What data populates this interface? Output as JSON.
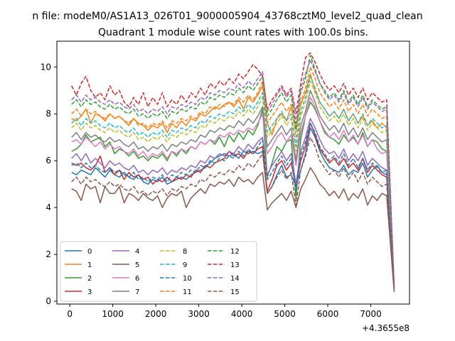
{
  "figure": {
    "suptitle": "n file: modeM0/AS1A13_026T01_9000005904_43768cztM0_level2_quad_clean"
  },
  "chart_data": {
    "type": "line",
    "title": "Quadrant 1 module wise count rates with 100.0s bins.",
    "xlabel": "",
    "ylabel": "",
    "x_offset_label": "+4.3655e8",
    "xlim": [
      -300,
      7900
    ],
    "ylim": [
      -0.12,
      11.1
    ],
    "xticks": [
      0,
      1000,
      2000,
      3000,
      4000,
      5000,
      6000,
      7000
    ],
    "xtick_labels": [
      "0",
      "1000",
      "2000",
      "3000",
      "4000",
      "5000",
      "6000",
      "7000"
    ],
    "yticks": [
      0,
      2,
      4,
      6,
      8,
      10
    ],
    "ytick_labels": [
      "0",
      "2",
      "4",
      "6",
      "8",
      "10"
    ],
    "grid": false,
    "legend_position": "lower-left",
    "legend_columns": 4,
    "series": [
      {
        "name": "0",
        "color": "#1f77b4",
        "dash": "solid",
        "values": [
          5.5,
          5.4,
          5.6,
          5.5,
          5.4,
          5.7,
          5.5,
          5.3,
          5.6,
          5.4,
          5.3,
          5.5,
          5.3,
          5.2,
          5.4,
          5.1,
          5.0,
          5.2,
          5.1,
          5.3,
          5.0,
          5.1,
          5.2,
          5.3,
          5.2,
          5.4,
          5.5,
          5.6,
          5.7,
          5.9,
          6.1,
          6.2,
          6.3,
          6.2,
          6.3,
          6.1,
          6.4,
          6.3,
          6.4,
          6.3,
          6.4,
          4.6,
          4.9,
          5.4,
          5.8,
          5.3,
          5.4,
          4.9,
          5.6,
          6.3,
          7.4,
          7.0,
          6.4,
          6.0,
          5.7,
          5.6,
          5.5,
          5.8,
          5.4,
          5.6,
          5.5,
          5.9,
          5.3,
          5.6,
          5.8,
          5.5,
          5.4,
          0.5
        ]
      },
      {
        "name": "1",
        "color": "#ff7f0e",
        "dash": "solid",
        "values": [
          7.8,
          7.7,
          7.9,
          8.2,
          7.6,
          8.0,
          7.9,
          7.7,
          8.0,
          7.8,
          7.9,
          7.7,
          7.5,
          7.8,
          7.6,
          7.5,
          7.3,
          7.5,
          7.4,
          7.6,
          7.2,
          7.6,
          7.4,
          7.7,
          7.5,
          7.8,
          7.7,
          8.0,
          7.9,
          8.1,
          8.3,
          8.2,
          8.4,
          8.5,
          8.3,
          8.6,
          8.2,
          8.7,
          8.5,
          8.8,
          9.2,
          7.6,
          7.1,
          7.8,
          8.0,
          7.7,
          8.3,
          7.4,
          8.4,
          8.9,
          9.7,
          9.0,
          8.5,
          8.2,
          7.9,
          8.1,
          7.8,
          8.2,
          7.7,
          8.0,
          7.6,
          7.9,
          7.5,
          7.7,
          7.4,
          7.6,
          7.4,
          0.6
        ]
      },
      {
        "name": "2",
        "color": "#2ca02c",
        "dash": "solid",
        "values": [
          6.4,
          6.5,
          6.7,
          7.1,
          6.8,
          6.9,
          7.0,
          6.6,
          6.8,
          6.3,
          6.5,
          6.4,
          6.2,
          6.4,
          6.1,
          6.2,
          6.0,
          6.2,
          6.1,
          6.3,
          6.0,
          6.4,
          6.2,
          6.5,
          6.3,
          6.6,
          6.5,
          6.8,
          6.7,
          6.9,
          6.7,
          7.0,
          6.6,
          7.1,
          6.8,
          7.2,
          6.9,
          7.3,
          7.1,
          7.5,
          8.2,
          5.3,
          5.9,
          6.6,
          6.4,
          6.8,
          6.9,
          4.4,
          6.9,
          7.9,
          8.5,
          8.2,
          7.7,
          7.2,
          7.0,
          6.9,
          6.7,
          7.1,
          6.8,
          7.0,
          6.7,
          7.2,
          6.6,
          6.9,
          6.8,
          6.5,
          6.4,
          0.5
        ]
      },
      {
        "name": "3",
        "color": "#d62728",
        "dash": "solid",
        "values": [
          5.9,
          5.8,
          5.9,
          5.7,
          5.6,
          5.8,
          6.2,
          5.5,
          5.7,
          5.4,
          5.6,
          5.2,
          5.5,
          5.3,
          5.4,
          5.2,
          5.3,
          5.0,
          5.2,
          5.1,
          5.3,
          5.1,
          5.3,
          5.2,
          5.4,
          5.3,
          5.6,
          5.5,
          5.8,
          5.7,
          5.9,
          6.0,
          6.1,
          6.4,
          6.2,
          6.3,
          6.1,
          6.4,
          6.3,
          6.5,
          6.6,
          4.7,
          5.2,
          5.8,
          6.0,
          5.6,
          5.9,
          4.9,
          6.0,
          6.6,
          7.6,
          7.1,
          6.5,
          6.2,
          5.9,
          6.1,
          5.8,
          6.1,
          5.7,
          5.9,
          5.6,
          6.1,
          5.5,
          5.8,
          5.6,
          5.4,
          5.3,
          0.5
        ]
      },
      {
        "name": "4",
        "color": "#9467bd",
        "dash": "solid",
        "values": [
          6.1,
          6.3,
          6.0,
          6.3,
          5.9,
          6.1,
          5.9,
          5.7,
          6.0,
          5.8,
          5.9,
          5.7,
          5.6,
          5.8,
          5.5,
          5.6,
          5.4,
          5.6,
          5.5,
          5.7,
          5.4,
          5.6,
          5.5,
          5.7,
          5.6,
          5.8,
          5.7,
          6.0,
          5.9,
          6.2,
          6.1,
          6.3,
          6.2,
          6.4,
          6.3,
          6.6,
          6.4,
          6.7,
          6.5,
          6.8,
          7.0,
          5.4,
          5.8,
          6.1,
          6.4,
          6.0,
          6.3,
          5.0,
          6.4,
          7.0,
          7.8,
          7.4,
          6.9,
          6.5,
          6.3,
          6.4,
          6.1,
          6.5,
          6.0,
          6.3,
          6.0,
          6.4,
          5.8,
          6.1,
          5.9,
          5.7,
          5.6,
          0.5
        ]
      },
      {
        "name": "5",
        "color": "#8c564b",
        "dash": "solid",
        "values": [
          4.8,
          4.7,
          4.3,
          5.0,
          4.8,
          4.9,
          4.2,
          4.9,
          4.6,
          4.6,
          4.9,
          4.2,
          4.6,
          4.5,
          4.3,
          4.6,
          4.4,
          4.3,
          4.5,
          4.0,
          4.4,
          4.6,
          4.5,
          4.7,
          4.0,
          4.4,
          4.6,
          4.8,
          4.6,
          5.0,
          4.9,
          5.1,
          5.0,
          5.2,
          4.9,
          5.3,
          5.1,
          5.2,
          5.0,
          5.3,
          5.5,
          3.9,
          4.2,
          4.4,
          4.6,
          4.3,
          4.7,
          4.0,
          4.8,
          5.2,
          5.7,
          5.4,
          5.0,
          4.8,
          4.5,
          4.7,
          4.4,
          4.8,
          4.3,
          4.6,
          4.4,
          4.8,
          4.1,
          4.5,
          4.3,
          4.6,
          4.5,
          0.4
        ]
      },
      {
        "name": "6",
        "color": "#e377c2",
        "dash": "solid",
        "values": [
          6.8,
          6.9,
          6.7,
          7.0,
          6.8,
          6.6,
          6.8,
          6.5,
          6.7,
          6.5,
          6.6,
          6.4,
          6.3,
          6.5,
          6.2,
          6.4,
          6.1,
          6.3,
          6.2,
          6.4,
          6.1,
          6.4,
          6.3,
          6.5,
          6.4,
          6.6,
          6.5,
          6.8,
          6.7,
          6.9,
          6.8,
          7.1,
          7.0,
          7.2,
          7.1,
          7.3,
          7.2,
          7.4,
          7.3,
          7.6,
          8.0,
          6.3,
          6.6,
          7.0,
          7.2,
          6.8,
          7.1,
          5.8,
          7.2,
          7.9,
          8.7,
          8.3,
          7.7,
          7.3,
          7.0,
          7.2,
          6.9,
          7.3,
          6.8,
          7.1,
          6.7,
          7.1,
          6.6,
          6.9,
          6.5,
          6.3,
          6.4,
          0.5
        ]
      },
      {
        "name": "7",
        "color": "#7f7f7f",
        "dash": "solid",
        "values": [
          7.0,
          7.2,
          6.9,
          7.2,
          7.0,
          7.1,
          6.9,
          6.8,
          7.0,
          6.8,
          6.9,
          6.7,
          6.6,
          6.8,
          6.5,
          6.6,
          6.4,
          6.6,
          6.5,
          6.7,
          6.4,
          6.7,
          6.6,
          6.8,
          6.7,
          6.9,
          6.8,
          7.1,
          7.0,
          7.3,
          7.2,
          7.4,
          7.3,
          7.5,
          7.4,
          7.7,
          7.5,
          7.8,
          7.6,
          7.9,
          8.3,
          6.6,
          6.9,
          7.2,
          7.5,
          7.1,
          7.4,
          6.0,
          7.5,
          8.1,
          9.0,
          8.5,
          7.9,
          7.6,
          7.3,
          7.5,
          7.2,
          7.6,
          7.1,
          7.4,
          7.0,
          7.4,
          6.9,
          7.2,
          7.0,
          6.8,
          6.9,
          0.6
        ]
      },
      {
        "name": "8",
        "color": "#bcbd22",
        "dash": "dashed",
        "values": [
          7.4,
          7.6,
          7.3,
          7.6,
          7.4,
          7.5,
          7.3,
          7.2,
          7.4,
          7.2,
          7.3,
          7.1,
          7.0,
          7.2,
          6.9,
          7.0,
          6.8,
          7.0,
          6.9,
          7.1,
          6.8,
          7.1,
          7.0,
          7.2,
          7.1,
          7.3,
          7.2,
          7.5,
          7.4,
          7.7,
          7.6,
          7.8,
          7.7,
          7.9,
          7.8,
          8.1,
          7.9,
          8.2,
          8.0,
          8.3,
          8.7,
          7.0,
          7.3,
          7.6,
          7.9,
          7.5,
          7.8,
          6.4,
          7.9,
          8.5,
          9.4,
          8.9,
          8.3,
          8.0,
          7.7,
          7.9,
          7.6,
          8.0,
          7.5,
          7.8,
          7.4,
          7.8,
          7.3,
          7.6,
          7.4,
          7.2,
          7.3,
          0.6
        ]
      },
      {
        "name": "9",
        "color": "#17becf",
        "dash": "dashed",
        "values": [
          7.6,
          7.8,
          7.5,
          7.8,
          7.6,
          7.7,
          7.5,
          7.4,
          7.6,
          7.4,
          7.5,
          7.3,
          7.2,
          7.4,
          7.1,
          7.2,
          7.0,
          7.2,
          7.1,
          7.3,
          7.0,
          7.3,
          7.2,
          7.4,
          7.3,
          7.5,
          7.4,
          7.7,
          7.6,
          7.9,
          7.8,
          8.0,
          7.9,
          8.1,
          8.0,
          8.3,
          8.1,
          8.4,
          8.2,
          8.5,
          8.9,
          7.2,
          7.5,
          7.8,
          8.1,
          7.7,
          8.0,
          6.6,
          8.1,
          8.7,
          9.6,
          9.1,
          8.5,
          8.2,
          7.9,
          8.1,
          7.8,
          8.2,
          7.7,
          8.0,
          7.6,
          8.0,
          7.5,
          7.8,
          7.6,
          7.4,
          7.5,
          0.6
        ]
      },
      {
        "name": "10",
        "color": "#1f77b4",
        "dash": "dashed",
        "values": [
          5.8,
          5.9,
          5.7,
          5.9,
          5.7,
          5.8,
          5.6,
          5.5,
          5.7,
          5.5,
          5.6,
          5.4,
          5.3,
          5.5,
          5.2,
          5.3,
          5.1,
          5.3,
          5.2,
          5.4,
          5.1,
          5.4,
          5.3,
          5.5,
          5.4,
          5.6,
          5.5,
          5.8,
          5.7,
          6.0,
          5.9,
          6.1,
          6.0,
          6.2,
          6.1,
          6.4,
          6.2,
          6.5,
          6.3,
          6.6,
          6.9,
          5.2,
          5.5,
          5.9,
          6.2,
          5.8,
          6.1,
          4.7,
          6.2,
          6.8,
          7.6,
          7.2,
          6.6,
          6.3,
          6.0,
          6.2,
          5.9,
          6.3,
          5.8,
          6.1,
          5.7,
          6.1,
          5.6,
          5.9,
          5.7,
          5.5,
          5.6,
          0.5
        ]
      },
      {
        "name": "11",
        "color": "#ff7f0e",
        "dash": "dashed",
        "values": [
          8.0,
          8.2,
          7.9,
          8.2,
          8.0,
          8.1,
          7.9,
          7.8,
          8.0,
          7.8,
          7.9,
          7.7,
          7.6,
          7.8,
          7.5,
          7.6,
          7.4,
          7.6,
          7.5,
          7.7,
          7.4,
          7.7,
          7.6,
          7.8,
          7.7,
          7.9,
          7.8,
          8.1,
          8.0,
          8.3,
          8.2,
          8.4,
          8.3,
          8.5,
          8.4,
          8.7,
          8.5,
          8.8,
          8.6,
          8.9,
          9.4,
          7.6,
          7.9,
          8.2,
          8.5,
          8.1,
          8.4,
          7.0,
          8.5,
          9.1,
          10.0,
          9.5,
          8.9,
          8.6,
          8.3,
          8.5,
          8.2,
          8.6,
          8.1,
          8.4,
          8.0,
          8.4,
          7.9,
          8.2,
          8.0,
          7.8,
          7.9,
          0.6
        ]
      },
      {
        "name": "12",
        "color": "#2ca02c",
        "dash": "dashed",
        "values": [
          8.4,
          8.6,
          8.3,
          8.6,
          8.4,
          8.5,
          8.3,
          8.2,
          8.4,
          8.2,
          8.3,
          8.1,
          8.0,
          8.2,
          7.9,
          8.0,
          7.8,
          8.0,
          7.9,
          8.1,
          7.8,
          8.1,
          8.0,
          8.2,
          8.1,
          8.3,
          8.2,
          8.5,
          8.4,
          8.7,
          8.6,
          8.8,
          8.7,
          8.9,
          8.8,
          9.1,
          8.9,
          9.2,
          9.0,
          9.3,
          9.6,
          7.9,
          8.2,
          8.6,
          8.9,
          8.5,
          8.8,
          7.3,
          8.9,
          9.5,
          10.5,
          9.9,
          9.3,
          9.0,
          8.7,
          8.9,
          8.6,
          9.0,
          8.5,
          8.8,
          8.4,
          8.8,
          8.3,
          8.6,
          8.4,
          8.2,
          8.3,
          0.6
        ]
      },
      {
        "name": "13",
        "color": "#d62728",
        "dash": "dashed",
        "values": [
          9.2,
          8.8,
          9.3,
          9.6,
          9.0,
          8.7,
          8.9,
          8.6,
          9.2,
          8.8,
          9.0,
          8.5,
          8.3,
          8.7,
          8.4,
          8.9,
          8.3,
          8.7,
          8.4,
          8.9,
          8.3,
          8.6,
          8.4,
          8.8,
          8.5,
          8.9,
          8.7,
          9.1,
          8.8,
          9.3,
          9.1,
          9.4,
          9.2,
          9.5,
          9.3,
          9.7,
          9.5,
          9.8,
          10.1,
          9.9,
          9.6,
          8.2,
          8.6,
          8.9,
          9.2,
          8.8,
          9.1,
          8.0,
          9.3,
          10.4,
          10.6,
          10.2,
          9.7,
          9.3,
          9.0,
          9.2,
          8.9,
          9.3,
          8.8,
          9.1,
          8.7,
          9.1,
          8.6,
          8.9,
          8.7,
          8.5,
          8.6,
          0.7
        ]
      },
      {
        "name": "14",
        "color": "#9467bd",
        "dash": "dashed",
        "values": [
          8.6,
          8.8,
          8.5,
          8.8,
          8.6,
          8.7,
          8.5,
          8.4,
          8.6,
          8.4,
          8.5,
          8.3,
          8.2,
          8.4,
          8.1,
          8.2,
          8.0,
          8.2,
          8.1,
          8.3,
          8.0,
          8.3,
          8.2,
          8.4,
          8.3,
          8.5,
          8.4,
          8.7,
          8.6,
          8.9,
          8.8,
          9.0,
          8.9,
          9.1,
          9.0,
          9.3,
          9.1,
          9.4,
          9.2,
          9.5,
          9.8,
          8.1,
          8.4,
          8.8,
          9.1,
          8.7,
          9.0,
          7.6,
          9.1,
          9.7,
          10.3,
          9.8,
          9.3,
          8.9,
          8.6,
          8.8,
          8.5,
          8.9,
          8.4,
          8.7,
          8.3,
          8.7,
          8.2,
          8.5,
          8.3,
          8.1,
          8.2,
          0.6
        ]
      },
      {
        "name": "15",
        "color": "#8c564b",
        "dash": "dashed",
        "values": [
          5.1,
          5.3,
          5.0,
          5.3,
          5.1,
          5.2,
          5.0,
          4.9,
          5.1,
          4.9,
          5.0,
          4.8,
          4.7,
          4.9,
          4.6,
          4.7,
          4.5,
          4.7,
          4.6,
          4.8,
          4.5,
          4.8,
          4.7,
          4.9,
          4.8,
          5.0,
          4.9,
          5.2,
          5.1,
          5.4,
          5.3,
          5.5,
          5.4,
          5.6,
          5.5,
          5.8,
          5.6,
          5.9,
          5.7,
          6.0,
          6.3,
          4.6,
          4.9,
          5.3,
          5.6,
          5.2,
          5.5,
          4.1,
          5.6,
          6.2,
          7.0,
          6.6,
          6.0,
          5.7,
          5.4,
          5.6,
          5.3,
          5.7,
          5.2,
          5.5,
          5.1,
          5.5,
          5.0,
          5.3,
          5.1,
          4.9,
          5.0,
          0.5
        ]
      }
    ]
  }
}
